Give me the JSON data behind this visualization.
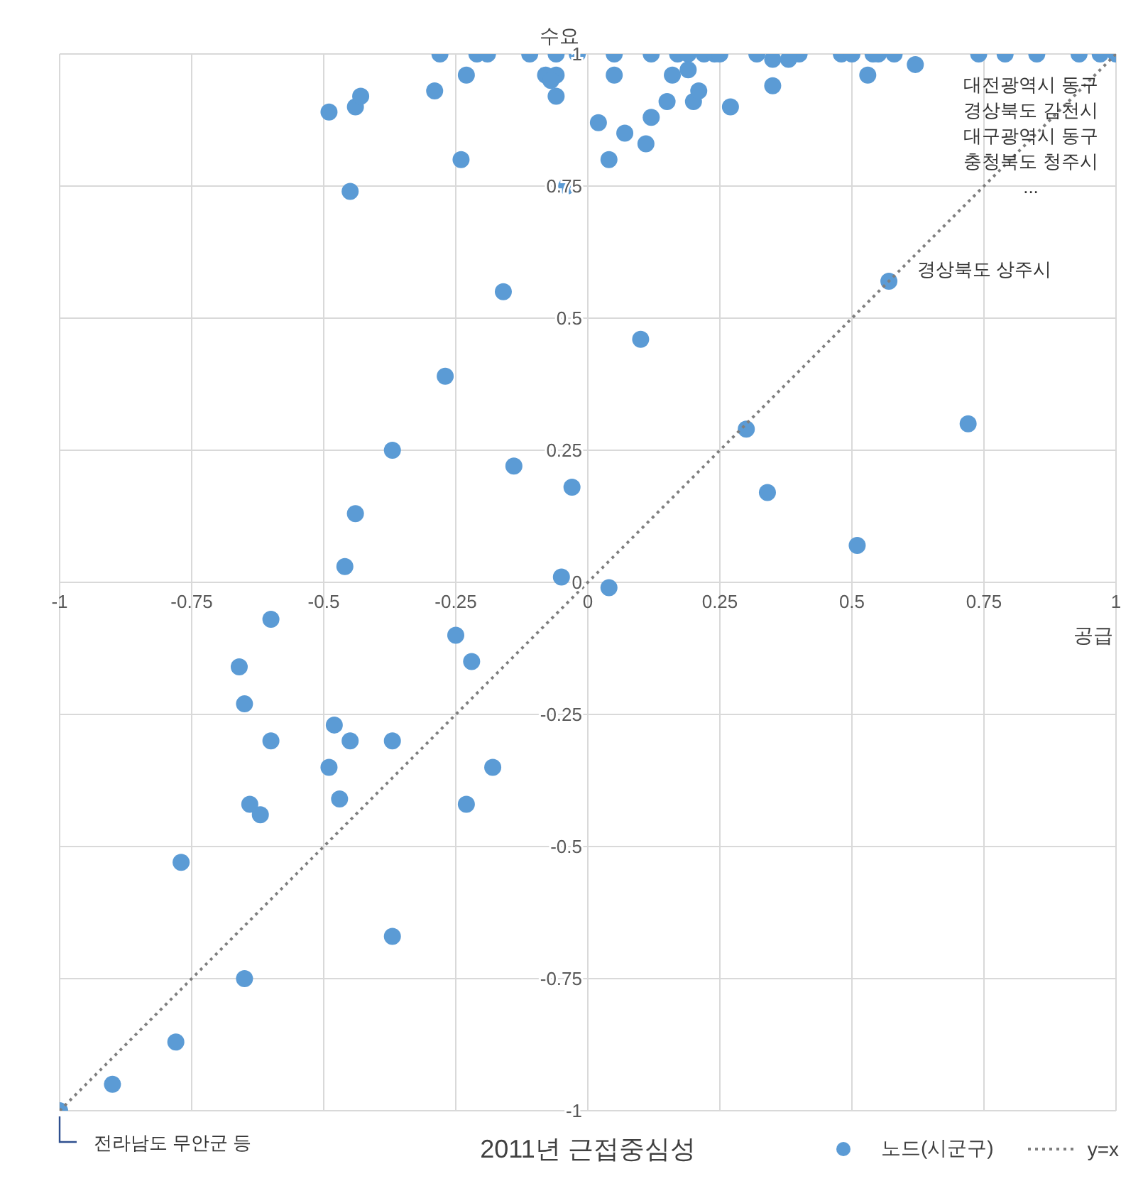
{
  "chart_data": {
    "type": "scatter",
    "title": "2011년 근접중심성",
    "xlabel": "공급",
    "ylabel": "수요",
    "xlim": [
      -1,
      1
    ],
    "ylim": [
      -1,
      1
    ],
    "xticks": [
      -1,
      -0.75,
      -0.5,
      -0.25,
      0,
      0.25,
      0.5,
      0.75,
      1
    ],
    "yticks": [
      -1,
      -0.75,
      -0.5,
      -0.25,
      0,
      0.25,
      0.5,
      0.75,
      1
    ],
    "grid": true,
    "legend": "bottom",
    "series": [
      {
        "name": "노드(시군구)",
        "type": "scatter",
        "marker": "circle",
        "color": "#5b9bd5",
        "x": [
          -0.28,
          -0.21,
          -0.19,
          -0.11,
          -0.06,
          -0.02,
          0.05,
          0.12,
          0.17,
          0.19,
          0.22,
          0.24,
          0.25,
          0.32,
          0.4,
          0.48,
          0.5,
          0.54,
          0.55,
          0.58,
          0.74,
          0.79,
          0.85,
          0.93,
          0.97,
          1.0,
          0.35,
          0.38,
          -0.49,
          -0.44,
          -0.43,
          -0.29,
          -0.23,
          -0.08,
          -0.06,
          -0.07,
          -0.06,
          -0.24,
          -0.45,
          -0.04,
          0.02,
          0.07,
          0.04,
          0.11,
          0.12,
          0.15,
          0.19,
          0.2,
          0.21,
          0.05,
          0.16,
          0.27,
          0.35,
          0.53,
          0.62,
          -0.16,
          -0.27,
          -0.37,
          -0.14,
          -0.03,
          -0.44,
          -0.46,
          -0.05,
          0.57,
          0.1,
          0.3,
          0.72,
          0.34,
          0.51,
          0.04,
          -0.6,
          -0.25,
          -0.66,
          -0.22,
          -0.65,
          -0.48,
          -0.6,
          -0.45,
          -0.37,
          -0.18,
          -0.49,
          -0.64,
          -0.47,
          -0.23,
          -0.62,
          -0.77,
          -0.37,
          -0.65,
          -0.78,
          -0.9,
          -1.0
        ],
        "values": [
          1,
          1,
          1,
          1,
          1,
          1,
          1,
          1,
          1,
          1,
          1,
          1,
          1,
          1,
          1,
          1,
          1,
          1,
          1,
          1,
          1,
          1,
          1,
          1,
          1,
          1,
          0.99,
          0.99,
          0.89,
          0.9,
          0.92,
          0.93,
          0.96,
          0.96,
          0.96,
          0.95,
          0.92,
          0.8,
          0.74,
          0.75,
          0.87,
          0.85,
          0.8,
          0.83,
          0.88,
          0.91,
          0.97,
          0.91,
          0.93,
          0.96,
          0.96,
          0.9,
          0.94,
          0.96,
          0.98,
          0.55,
          0.39,
          0.25,
          0.22,
          0.18,
          0.13,
          0.03,
          0.01,
          0.57,
          0.46,
          0.29,
          0.3,
          0.17,
          0.07,
          -0.01,
          -0.07,
          -0.1,
          -0.16,
          -0.15,
          -0.23,
          -0.27,
          -0.3,
          -0.3,
          -0.3,
          -0.35,
          -0.35,
          -0.42,
          -0.41,
          -0.42,
          -0.44,
          -0.53,
          -0.67,
          -0.75,
          -0.87,
          -0.95,
          -1.0
        ]
      },
      {
        "name": "y=x",
        "type": "line",
        "marker": "none",
        "line_style": "dotted",
        "color": "#7f7f7f",
        "x": [
          -1,
          1
        ],
        "values": [
          -1,
          1
        ]
      }
    ],
    "annotations": [
      {
        "text": "대전광역시 동구\n경상북도 김천시\n대구광역시 동구\n충청북도 청주시\n...",
        "x": 1.0,
        "y": 1
      },
      {
        "text": "경상북도 상주시",
        "x": 0.57,
        "y": 0.57
      },
      {
        "text": "전라남도 무안군 등",
        "x": -1.0,
        "y": -1.0
      }
    ]
  }
}
